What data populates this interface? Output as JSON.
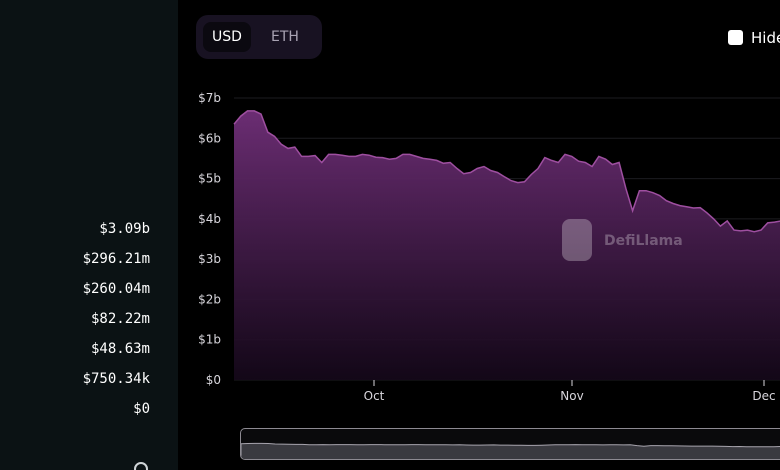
{
  "left_panel": {
    "values": [
      "$3.09b",
      "$296.21m",
      "$260.04m",
      "$82.22m",
      "$48.63m",
      "$750.34k",
      "$0"
    ]
  },
  "toggle": {
    "options": [
      "USD",
      "ETH"
    ],
    "selected": "USD"
  },
  "hide_checkbox": {
    "label": "Hide",
    "checked": false
  },
  "watermark": {
    "text": "DefiLlama"
  },
  "colors": {
    "accent": "#9e4fa0",
    "area_top": "#6b2d73",
    "area_bottom": "#15081a"
  },
  "chart_data": {
    "type": "area",
    "y_ticks": [
      "$0",
      "$1b",
      "$2b",
      "$3b",
      "$4b",
      "$5b",
      "$6b",
      "$7b"
    ],
    "x_ticks": [
      "Oct",
      "Nov",
      "Dec"
    ],
    "ylim": [
      0,
      7
    ],
    "y_unit": "billions USD",
    "grid": true,
    "series": [
      {
        "values": [
          6.35,
          6.55,
          6.68,
          6.68,
          6.6,
          6.15,
          6.05,
          5.85,
          5.75,
          5.78,
          5.55,
          5.55,
          5.57,
          5.4,
          5.6,
          5.6,
          5.58,
          5.55,
          5.55,
          5.6,
          5.58,
          5.53,
          5.52,
          5.48,
          5.5,
          5.6,
          5.6,
          5.55,
          5.5,
          5.48,
          5.45,
          5.38,
          5.4,
          5.25,
          5.12,
          5.15,
          5.25,
          5.3,
          5.2,
          5.15,
          5.05,
          4.95,
          4.9,
          4.92,
          5.1,
          5.25,
          5.52,
          5.45,
          5.4,
          5.6,
          5.55,
          5.43,
          5.4,
          5.3,
          5.55,
          5.48,
          5.35,
          5.4,
          4.75,
          4.2,
          4.7,
          4.7,
          4.65,
          4.58,
          4.45,
          4.38,
          4.33,
          4.3,
          4.27,
          4.28,
          4.15,
          4.0,
          3.82,
          3.95,
          3.72,
          3.7,
          3.72,
          3.68,
          3.72,
          3.9,
          3.92,
          3.95,
          3.9
        ]
      }
    ]
  }
}
